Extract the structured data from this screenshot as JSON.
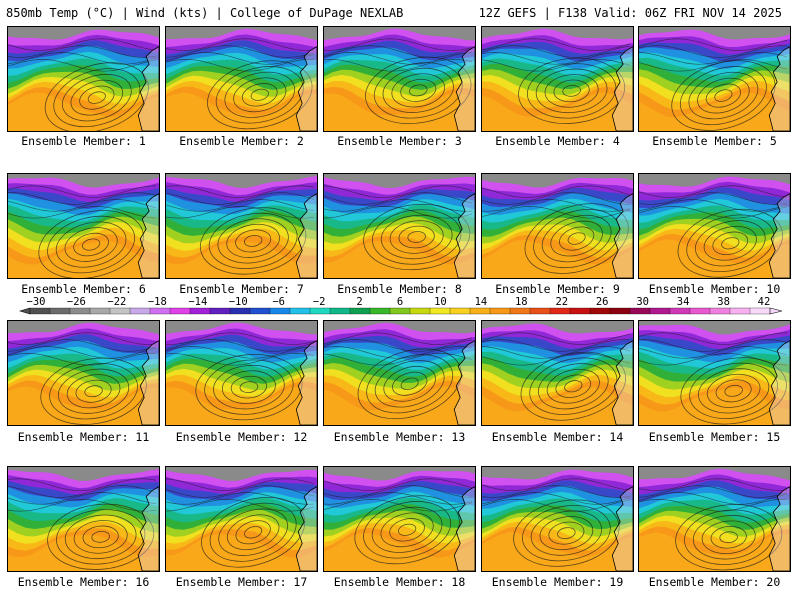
{
  "header": {
    "title_left": "850mb Temp (°C) | Wind (kts) | College of DuPage NEXLAB",
    "title_right": "12Z GEFS | F138 Valid: 06Z FRI NOV 14 2025"
  },
  "members": [
    {
      "label": "Ensemble Member: 1"
    },
    {
      "label": "Ensemble Member: 2"
    },
    {
      "label": "Ensemble Member: 3"
    },
    {
      "label": "Ensemble Member: 4"
    },
    {
      "label": "Ensemble Member: 5"
    },
    {
      "label": "Ensemble Member: 6"
    },
    {
      "label": "Ensemble Member: 7"
    },
    {
      "label": "Ensemble Member: 8"
    },
    {
      "label": "Ensemble Member: 9"
    },
    {
      "label": "Ensemble Member: 10"
    },
    {
      "label": "Ensemble Member: 11"
    },
    {
      "label": "Ensemble Member: 12"
    },
    {
      "label": "Ensemble Member: 13"
    },
    {
      "label": "Ensemble Member: 14"
    },
    {
      "label": "Ensemble Member: 15"
    },
    {
      "label": "Ensemble Member: 16"
    },
    {
      "label": "Ensemble Member: 17"
    },
    {
      "label": "Ensemble Member: 18"
    },
    {
      "label": "Ensemble Member: 19"
    },
    {
      "label": "Ensemble Member: 20"
    }
  ],
  "colorbar": {
    "tick_labels": [
      "−30",
      "−26",
      "−22",
      "−18",
      "−14",
      "−10",
      "−6",
      "−2",
      "2",
      "6",
      "10",
      "14",
      "18",
      "22",
      "26",
      "30",
      "34",
      "38",
      "42"
    ],
    "colors": [
      "#505050",
      "#6c6c6c",
      "#8c8c8c",
      "#a8a8a8",
      "#c4c4c4",
      "#c8a8e8",
      "#d070f0",
      "#e040e8",
      "#a020d8",
      "#6020c0",
      "#2830b0",
      "#2050d0",
      "#1888e8",
      "#20c0e8",
      "#20d8c0",
      "#10b888",
      "#10a050",
      "#38b828",
      "#80c820",
      "#c8d810",
      "#f0e820",
      "#f8d020",
      "#f8b018",
      "#f89818",
      "#f07818",
      "#e85018",
      "#e02818",
      "#c81010",
      "#a00808",
      "#8c0010",
      "#980858",
      "#b01890",
      "#d038b8",
      "#e858d0",
      "#f080e0",
      "#f8b0f0",
      "#f8d8f8"
    ]
  }
}
